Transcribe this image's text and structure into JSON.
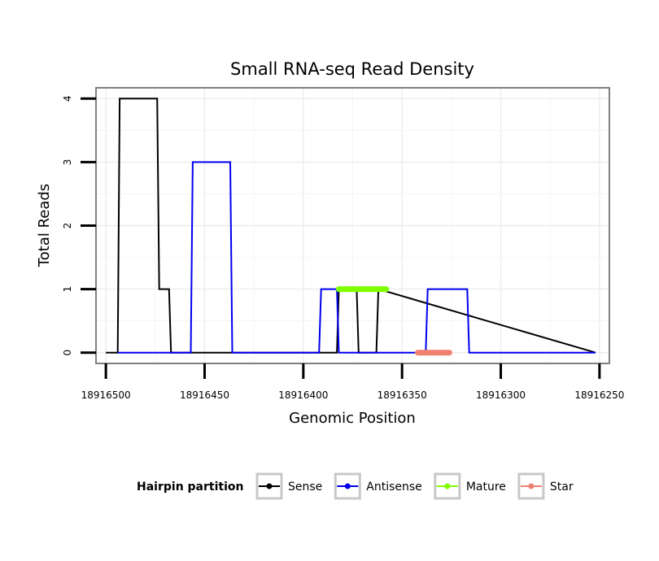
{
  "chart_data": {
    "type": "line",
    "title": "Small RNA-seq Read Density",
    "xlabel": "Genomic Position",
    "ylabel": "Total Reads",
    "x_reversed": true,
    "xlim": [
      18916505,
      18916245
    ],
    "ylim": [
      -0.17,
      4.17
    ],
    "x_ticks": [
      18916500,
      18916450,
      18916400,
      18916350,
      18916300,
      18916250
    ],
    "x_tick_labels": [
      "18916500",
      "18916450",
      "18916400",
      "18916350",
      "18916300",
      "18916250"
    ],
    "y_ticks": [
      0,
      1,
      2,
      3,
      4
    ],
    "y_tick_labels": [
      "0",
      "1",
      "2",
      "3",
      "4"
    ],
    "grid": true,
    "legend_position": "bottom",
    "legend_title": "Hairpin partition",
    "series": [
      {
        "name": "Sense",
        "color": "#000000",
        "x": [
          18916500,
          18916494,
          18916493,
          18916474,
          18916473,
          18916468,
          18916467,
          18916383,
          18916382,
          18916373,
          18916372,
          18916363,
          18916362,
          18916252
        ],
        "y": [
          0,
          0,
          4,
          4,
          1,
          1,
          0,
          0,
          1,
          1,
          0,
          0,
          1,
          0
        ]
      },
      {
        "name": "Antisense",
        "color": "#0000ee",
        "x": [
          18916494,
          18916457,
          18916456,
          18916437,
          18916436,
          18916392,
          18916391,
          18916383,
          18916382,
          18916373,
          18916372,
          18916338,
          18916337,
          18916317,
          18916316,
          18916252
        ],
        "y": [
          0,
          0,
          3,
          3,
          0,
          0,
          1,
          1,
          0,
          0,
          0,
          0,
          1,
          1,
          0,
          0
        ]
      },
      {
        "name": "Mature",
        "color": "#7fff00",
        "x": [
          18916382,
          18916358
        ],
        "y": [
          1,
          1
        ]
      },
      {
        "name": "Star",
        "color": "#f08070",
        "x": [
          18916342,
          18916326
        ],
        "y": [
          0,
          0
        ]
      }
    ]
  }
}
